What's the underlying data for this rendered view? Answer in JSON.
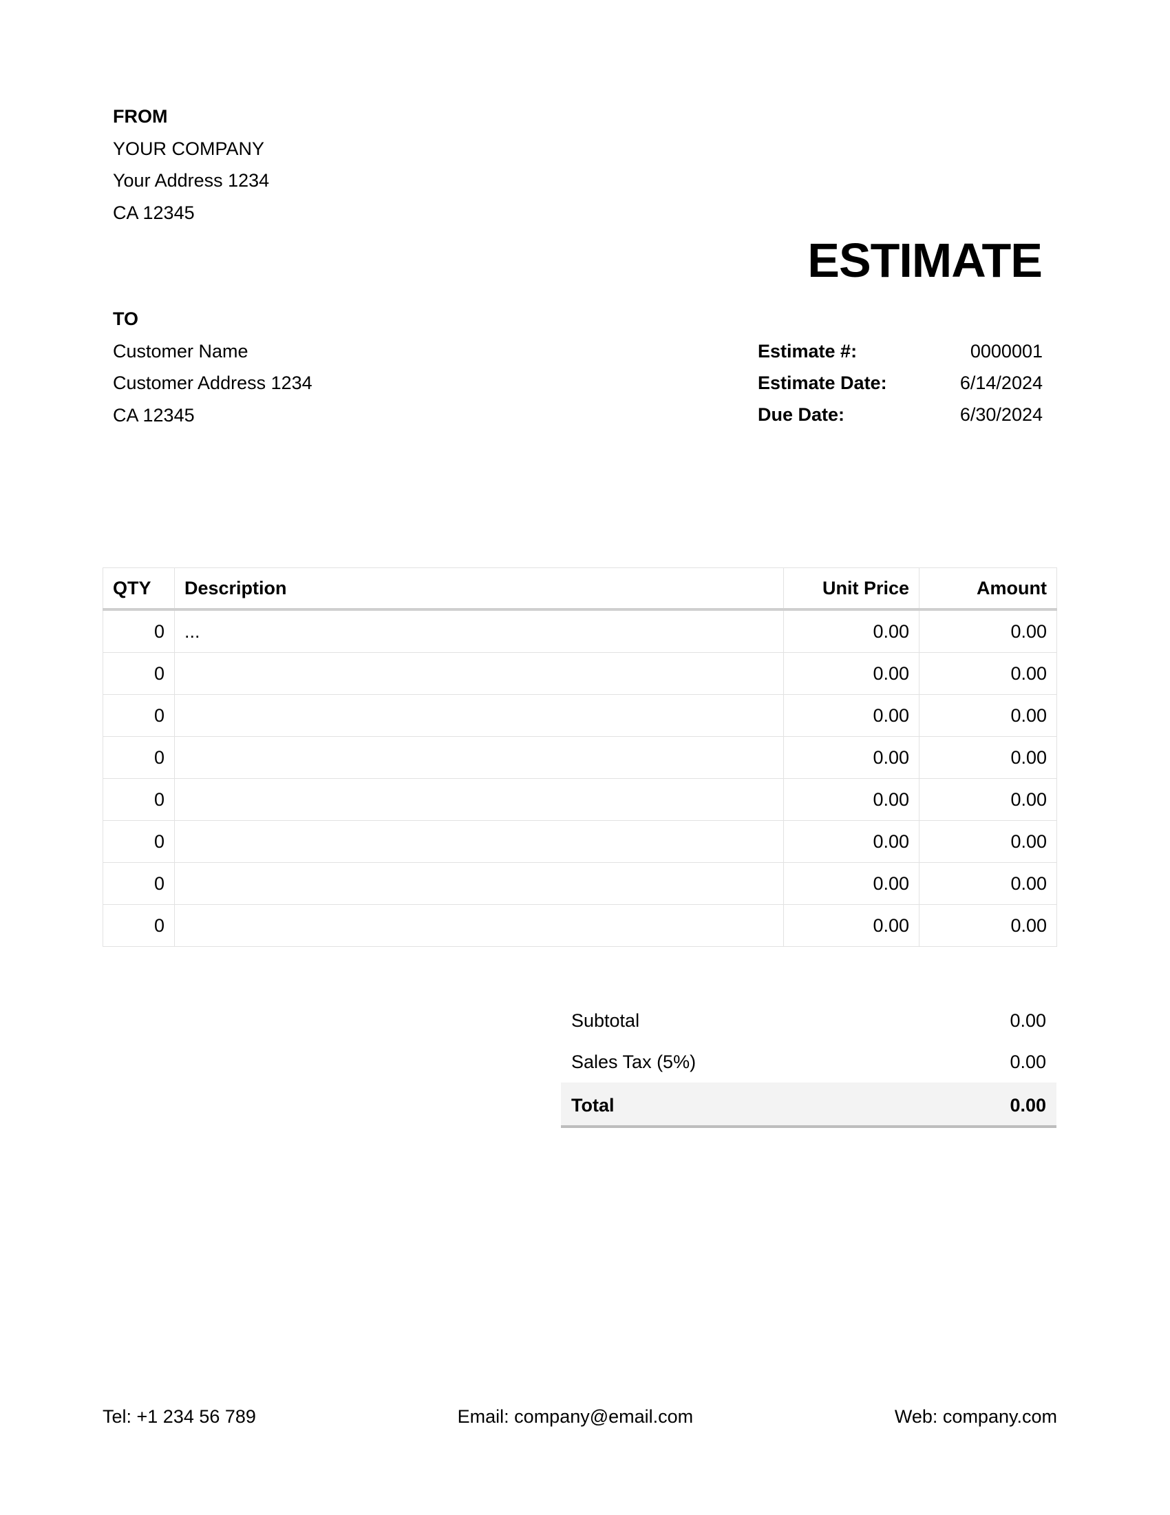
{
  "from": {
    "heading": "FROM",
    "company": "YOUR COMPANY",
    "address": "Your Address 1234",
    "city": "CA 12345"
  },
  "title": "ESTIMATE",
  "to": {
    "heading": "TO",
    "name": "Customer Name",
    "address": "Customer Address 1234",
    "city": "CA 12345"
  },
  "meta": [
    {
      "label": "Estimate #:",
      "value": "0000001"
    },
    {
      "label": "Estimate Date:",
      "value": "6/14/2024"
    },
    {
      "label": "Due Date:",
      "value": "6/30/2024"
    }
  ],
  "table": {
    "headers": {
      "qty": "QTY",
      "description": "Description",
      "unit_price": "Unit Price",
      "amount": "Amount"
    },
    "rows": [
      {
        "qty": "0",
        "description": "...",
        "unit_price": "0.00",
        "amount": "0.00"
      },
      {
        "qty": "0",
        "description": "",
        "unit_price": "0.00",
        "amount": "0.00"
      },
      {
        "qty": "0",
        "description": "",
        "unit_price": "0.00",
        "amount": "0.00"
      },
      {
        "qty": "0",
        "description": "",
        "unit_price": "0.00",
        "amount": "0.00"
      },
      {
        "qty": "0",
        "description": "",
        "unit_price": "0.00",
        "amount": "0.00"
      },
      {
        "qty": "0",
        "description": "",
        "unit_price": "0.00",
        "amount": "0.00"
      },
      {
        "qty": "0",
        "description": "",
        "unit_price": "0.00",
        "amount": "0.00"
      },
      {
        "qty": "0",
        "description": "",
        "unit_price": "0.00",
        "amount": "0.00"
      }
    ]
  },
  "totals": {
    "subtotal_label": "Subtotal",
    "subtotal": "0.00",
    "tax_label": "Sales Tax (5%)",
    "tax": "0.00",
    "total_label": "Total",
    "total": "0.00"
  },
  "footer": {
    "tel": "Tel: +1 234 56 789",
    "email": "Email: company@email.com",
    "web": "Web: company.com"
  }
}
